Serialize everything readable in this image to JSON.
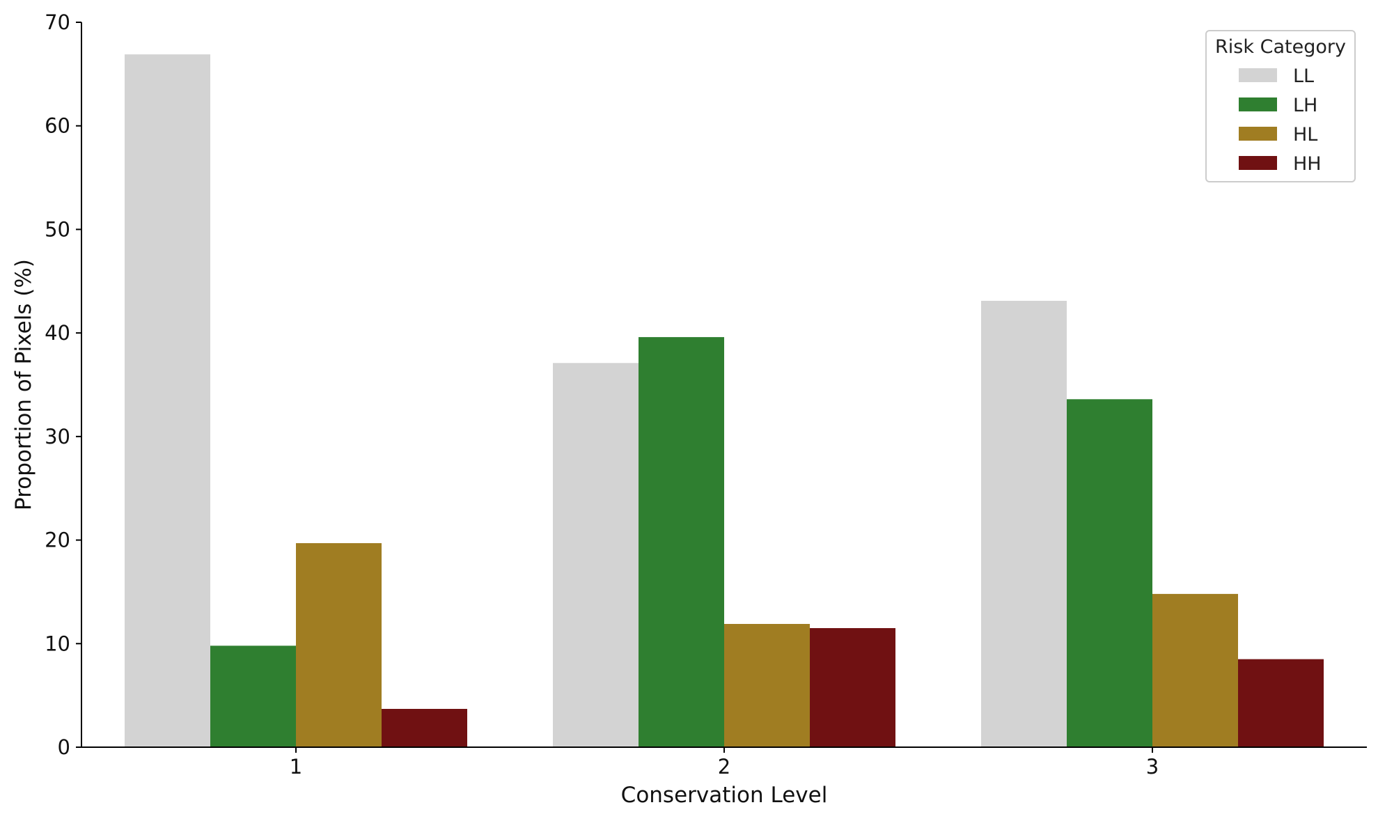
{
  "chart_data": {
    "type": "bar",
    "title": "",
    "xlabel": "Conservation Level",
    "ylabel": "Proportion of Pixels (%)",
    "categories": [
      "1",
      "2",
      "3"
    ],
    "ylim": [
      0,
      70
    ],
    "yticks": [
      0,
      10,
      20,
      30,
      40,
      50,
      60,
      70
    ],
    "grid": false,
    "legend": {
      "title": "Risk Category",
      "position": "top-right"
    },
    "series": [
      {
        "name": "LL",
        "color": "#d3d3d3",
        "values": [
          66.9,
          37.1,
          43.1
        ]
      },
      {
        "name": "LH",
        "color": "#2f7f30",
        "values": [
          9.8,
          39.6,
          33.6
        ]
      },
      {
        "name": "HL",
        "color": "#a07d22",
        "values": [
          19.7,
          11.9,
          14.8
        ]
      },
      {
        "name": "HH",
        "color": "#701112",
        "values": [
          3.7,
          11.5,
          8.5
        ]
      }
    ]
  }
}
